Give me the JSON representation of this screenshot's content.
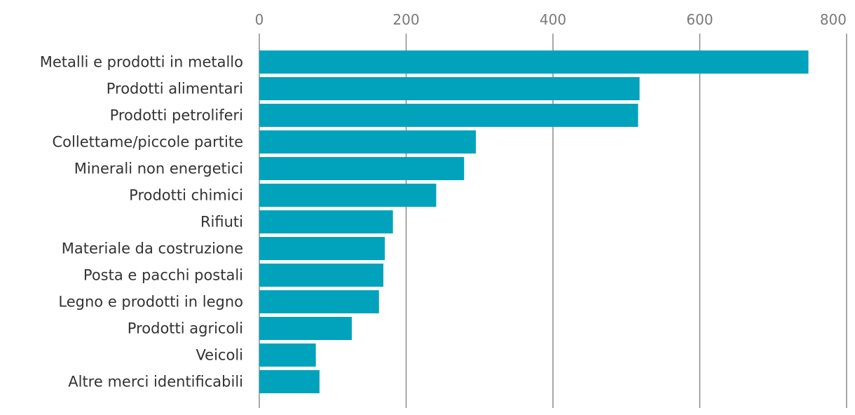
{
  "chart_data": {
    "type": "bar",
    "orientation": "horizontal",
    "categories": [
      "Metalli e prodotti in metallo",
      "Prodotti alimentari",
      "Prodotti petroliferi",
      "Collettame/piccole partite",
      "Minerali non energetici",
      "Prodotti chimici",
      "Rifiuti",
      "Materiale da costruzione",
      "Posta e pacchi postali",
      "Legno e prodotti in legno",
      "Prodotti agricoli",
      "Veicoli",
      "Altre merci identificabili"
    ],
    "values": [
      748,
      518,
      516,
      295,
      279,
      241,
      182,
      171,
      169,
      163,
      126,
      77,
      82
    ],
    "xlim": [
      0,
      800
    ],
    "xticks": [
      0,
      200,
      400,
      600,
      800
    ],
    "x_axis_position": "top",
    "grid": true,
    "bar_color": "#00a3bb",
    "title": "",
    "xlabel": "",
    "ylabel": ""
  }
}
